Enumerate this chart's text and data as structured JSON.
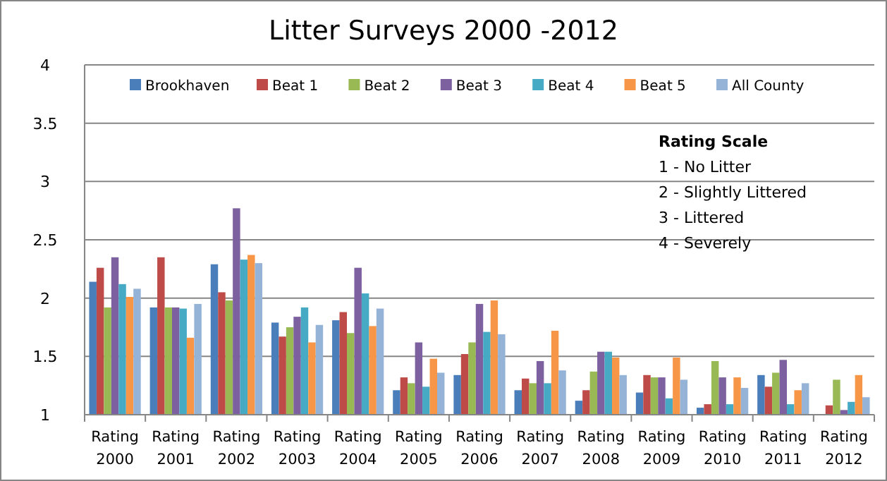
{
  "chart_data": {
    "type": "bar",
    "title": "Litter Surveys 2000 -2012",
    "categories": [
      "Rating 2000",
      "Rating 2001",
      "Rating 2002",
      "Rating 2003",
      "Rating 2004",
      "Rating 2005",
      "Rating 2006",
      "Rating 2007",
      "Rating 2008",
      "Rating 2009",
      "Rating 2010",
      "Rating 2011",
      "Rating 2012"
    ],
    "series": [
      {
        "name": "Brookhaven",
        "color": "#4a7ebb",
        "values": [
          2.14,
          1.92,
          2.29,
          1.79,
          1.81,
          1.21,
          1.34,
          1.21,
          1.12,
          1.19,
          1.06,
          1.34,
          null
        ]
      },
      {
        "name": "Beat 1",
        "color": "#be4b48",
        "values": [
          2.26,
          2.35,
          2.05,
          1.67,
          1.88,
          1.32,
          1.52,
          1.31,
          1.21,
          1.34,
          1.09,
          1.24,
          1.08
        ]
      },
      {
        "name": "Beat 2",
        "color": "#98b954",
        "values": [
          1.92,
          1.92,
          1.98,
          1.75,
          1.7,
          1.27,
          1.62,
          1.27,
          1.37,
          1.32,
          1.46,
          1.36,
          1.3
        ]
      },
      {
        "name": "Beat 3",
        "color": "#7d60a0",
        "values": [
          2.35,
          1.92,
          2.77,
          1.84,
          2.26,
          1.62,
          1.95,
          1.46,
          1.54,
          1.32,
          1.32,
          1.47,
          1.04
        ]
      },
      {
        "name": "Beat 4",
        "color": "#46aac5",
        "values": [
          2.12,
          1.91,
          2.33,
          1.92,
          2.04,
          1.24,
          1.71,
          1.27,
          1.54,
          1.14,
          1.09,
          1.09,
          1.11
        ]
      },
      {
        "name": "Beat 5",
        "color": "#f79646",
        "values": [
          2.01,
          1.66,
          2.37,
          1.62,
          1.76,
          1.48,
          1.98,
          1.72,
          1.49,
          1.49,
          1.32,
          1.21,
          1.34
        ]
      },
      {
        "name": "All County",
        "color": "#95b3d7",
        "values": [
          2.08,
          1.95,
          2.3,
          1.77,
          1.91,
          1.36,
          1.69,
          1.38,
          1.34,
          1.3,
          1.23,
          1.27,
          1.15
        ]
      }
    ],
    "ylim": [
      1,
      4
    ],
    "yticks": [
      1,
      1.5,
      2,
      2.5,
      3,
      3.5,
      4
    ],
    "grid": "y",
    "legend": "top",
    "annotations": [
      "Rating Scale",
      "1 - No Litter",
      "2 - Slightly Littered",
      "3 - Littered",
      "4 - Severely"
    ]
  }
}
